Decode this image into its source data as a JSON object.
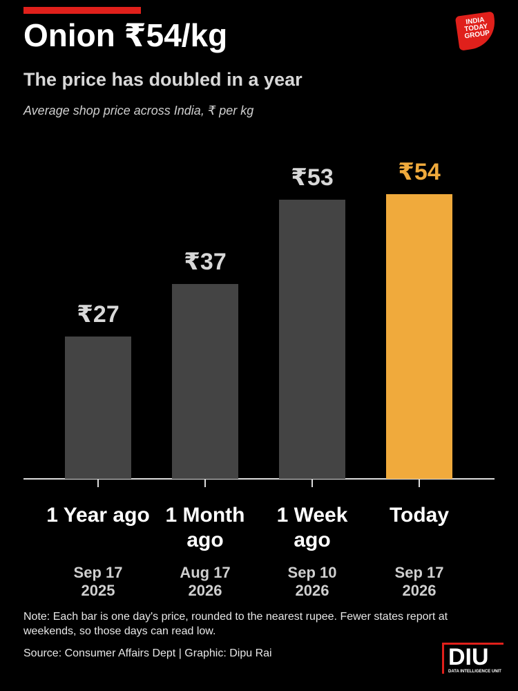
{
  "chart_data": {
    "type": "bar",
    "title": "Onion ₹54/kg",
    "subtitle": "The price has doubled in a year",
    "description": "Average shop price across India, ₹ per kg",
    "categories": [
      "1 Year ago",
      "1 Month ago",
      "1 Week ago",
      "Today"
    ],
    "dates": [
      "Sep 17 2025",
      "Aug 17 2026",
      "Sep 10 2026",
      "Sep 17 2026"
    ],
    "values": [
      27,
      37,
      53,
      54
    ],
    "value_labels": [
      "₹27",
      "₹37",
      "₹53",
      "₹54"
    ],
    "colors": [
      "#444444",
      "#444444",
      "#444444",
      "#f0aa3c"
    ],
    "note": "Note: Each bar is one day's price, rounded to the nearest rupee. Fewer states report at weekends, so those days can read low.",
    "source": "Source: Consumer Affairs Dept | Graphic: Dipu Rai"
  },
  "logos": {
    "publisher": "INDIA TODAY GROUP",
    "unit": "DIU",
    "unit_name": "DATA INTELLIGENCE UNIT"
  }
}
